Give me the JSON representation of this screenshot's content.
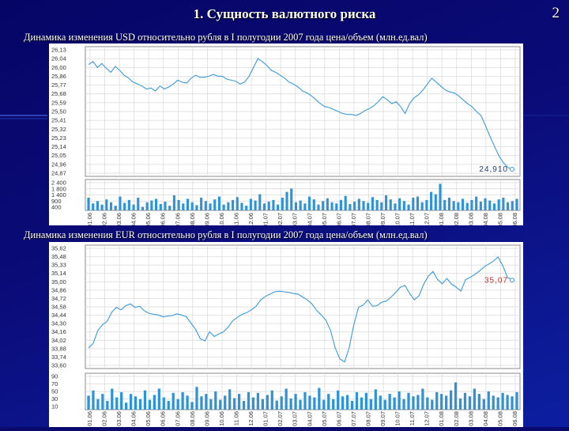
{
  "slide": {
    "title": "1. Сущность валютного риска",
    "number": "2"
  },
  "charts": [
    {
      "caption": "Динамика изменения USD относительно рубля  в I полугодии 2007 года  цена/объем (млн.ед.вал)",
      "last_label": "24,910",
      "price_ticks": [
        "26,13",
        "26,04",
        "26,00",
        "25,86",
        "25,77",
        "25,68",
        "25,59",
        "25,50",
        "25,41",
        "25,32",
        "25,23",
        "25,14",
        "25,05",
        "24,96",
        "24,87"
      ],
      "volume_ticks": [
        "2 400",
        "1 800",
        "1 400",
        "900",
        "400"
      ],
      "x_ticks": [
        "01.06",
        "02.06",
        "03.06",
        "04.06",
        "05.06",
        "06.06",
        "07.06",
        "08.06",
        "09.06",
        "10.06",
        "11.06",
        "12.06",
        "01.07",
        "02.07",
        "03.07",
        "04.07",
        "05.07",
        "06.07",
        "07.07",
        "08.07",
        "09.07",
        "10.07",
        "11.07",
        "12.07",
        "01.08",
        "02.08",
        "03.08",
        "04.08",
        "05.08",
        "06.08"
      ]
    },
    {
      "caption": "Динамика изменения EUR относительно рубля  в I полугодии 2007 года  цена/объем (млн.ед.вал)",
      "last_label": "35,07",
      "price_ticks": [
        "35,62",
        "35,48",
        "35,33",
        "35,14",
        "35,00",
        "34,86",
        "34,72",
        "34,58",
        "34,44",
        "34,30",
        "34,16",
        "34,02",
        "33,88",
        "33,74",
        "33,60"
      ],
      "volume_ticks": [
        "90",
        "70",
        "50",
        "30",
        "10"
      ],
      "x_ticks": [
        "01.06",
        "02.06",
        "03.06",
        "04.06",
        "05.06",
        "06.06",
        "07.06",
        "08.06",
        "09.06",
        "10.06",
        "11.06",
        "12.06",
        "01.07",
        "02.07",
        "03.07",
        "04.07",
        "05.07",
        "06.07",
        "07.07",
        "08.07",
        "09.07",
        "10.07",
        "11.07",
        "12.07",
        "01.08",
        "02.08",
        "03.08",
        "04.08",
        "05.08",
        "06.08"
      ]
    }
  ],
  "chart_data": [
    {
      "type": "line",
      "title": "Динамика изменения USD относительно рубля  в I полугодии 2007 года  цена/объем (млн.ед.вал)",
      "ylim": [
        24.87,
        26.13
      ],
      "values": [
        25.98,
        26.01,
        25.95,
        25.99,
        25.94,
        25.9,
        25.96,
        25.92,
        25.87,
        25.84,
        25.8,
        25.78,
        25.76,
        25.73,
        25.74,
        25.71,
        25.76,
        25.73,
        25.75,
        25.78,
        25.82,
        25.8,
        25.79,
        25.84,
        25.87,
        25.85,
        25.85,
        25.86,
        25.88,
        25.86,
        25.86,
        25.83,
        25.82,
        25.81,
        25.78,
        25.8,
        25.86,
        25.95,
        26.04,
        26.01,
        25.97,
        25.92,
        25.9,
        25.87,
        25.84,
        25.8,
        25.78,
        25.75,
        25.71,
        25.69,
        25.66,
        25.62,
        25.58,
        25.55,
        25.54,
        25.52,
        25.5,
        25.48,
        25.47,
        25.47,
        25.46,
        25.48,
        25.51,
        25.53,
        25.56,
        25.6,
        25.65,
        25.62,
        25.58,
        25.6,
        25.55,
        25.48,
        25.58,
        25.64,
        25.67,
        25.72,
        25.78,
        25.84,
        25.8,
        25.76,
        25.72,
        25.7,
        25.69,
        25.66,
        25.62,
        25.58,
        25.55,
        25.5,
        25.46,
        25.36,
        25.25,
        25.15,
        25.05,
        24.98,
        24.93,
        24.91
      ],
      "volumes": [
        1100,
        600,
        800,
        500,
        950,
        700,
        400,
        1200,
        650,
        900,
        500,
        1100,
        300,
        700,
        850,
        1000,
        550,
        750,
        400,
        1300,
        900,
        600,
        1000,
        700,
        450,
        1100,
        800,
        600,
        950,
        1200,
        500,
        700,
        900,
        1150,
        650,
        400,
        1000,
        850,
        1400,
        600,
        750,
        900,
        500,
        1100,
        1600,
        1900,
        700,
        850,
        600,
        1200,
        950,
        500,
        800,
        1050,
        700,
        600,
        900,
        1250,
        550,
        750,
        1000,
        800,
        650,
        1150,
        900,
        700,
        1300,
        950,
        600,
        1050,
        800,
        500,
        1100,
        1200,
        700,
        900,
        1600,
        1400,
        2300,
        900,
        1100,
        800,
        700,
        1000,
        650,
        900,
        1200,
        750,
        1050,
        850,
        600,
        950,
        1100,
        700,
        800,
        1000
      ],
      "vol_max": 2400
    },
    {
      "type": "line",
      "title": "Динамика изменения EUR относительно рубля  в I полугодии 2007 года  цена/объем (млн.ед.вал)",
      "ylim": [
        33.6,
        35.62
      ],
      "values": [
        33.9,
        33.98,
        34.2,
        34.3,
        34.36,
        34.52,
        34.6,
        34.56,
        34.63,
        34.66,
        34.6,
        34.62,
        34.54,
        34.5,
        34.48,
        34.47,
        34.44,
        34.45,
        34.46,
        34.49,
        34.47,
        34.44,
        34.33,
        34.22,
        34.06,
        34.02,
        34.18,
        34.1,
        34.14,
        34.18,
        34.26,
        34.37,
        34.43,
        34.48,
        34.51,
        34.56,
        34.62,
        34.73,
        34.79,
        34.83,
        34.87,
        34.88,
        34.87,
        34.86,
        34.84,
        34.83,
        34.78,
        34.73,
        34.66,
        34.55,
        34.47,
        34.38,
        34.2,
        33.9,
        33.71,
        33.66,
        33.9,
        34.3,
        34.6,
        34.64,
        34.73,
        34.62,
        34.63,
        34.69,
        34.71,
        34.78,
        34.86,
        34.95,
        34.98,
        34.84,
        34.73,
        34.8,
        35.0,
        35.14,
        35.22,
        35.08,
        35.01,
        35.1,
        35.0,
        34.95,
        34.88,
        35.08,
        35.12,
        35.17,
        35.23,
        35.3,
        35.35,
        35.4,
        35.47,
        35.32,
        35.12,
        35.07
      ],
      "volumes": [
        40,
        55,
        30,
        45,
        25,
        60,
        35,
        50,
        20,
        45,
        38,
        30,
        55,
        28,
        42,
        60,
        35,
        25,
        48,
        30,
        50,
        40,
        22,
        65,
        38,
        45,
        30,
        52,
        28,
        40,
        58,
        33,
        45,
        25,
        50,
        35,
        48,
        30,
        42,
        55,
        26,
        38,
        60,
        32,
        45,
        28,
        50,
        40,
        35,
        62,
        28,
        45,
        30,
        55,
        38,
        42,
        25,
        50,
        35,
        48,
        30,
        58,
        40,
        28,
        45,
        35,
        52,
        30,
        48,
        38,
        42,
        60,
        35,
        28,
        50,
        45,
        40,
        55,
        78,
        32,
        48,
        38,
        60,
        45,
        30,
        52,
        40,
        35,
        48,
        42,
        38,
        50
      ],
      "vol_max": 95
    }
  ]
}
